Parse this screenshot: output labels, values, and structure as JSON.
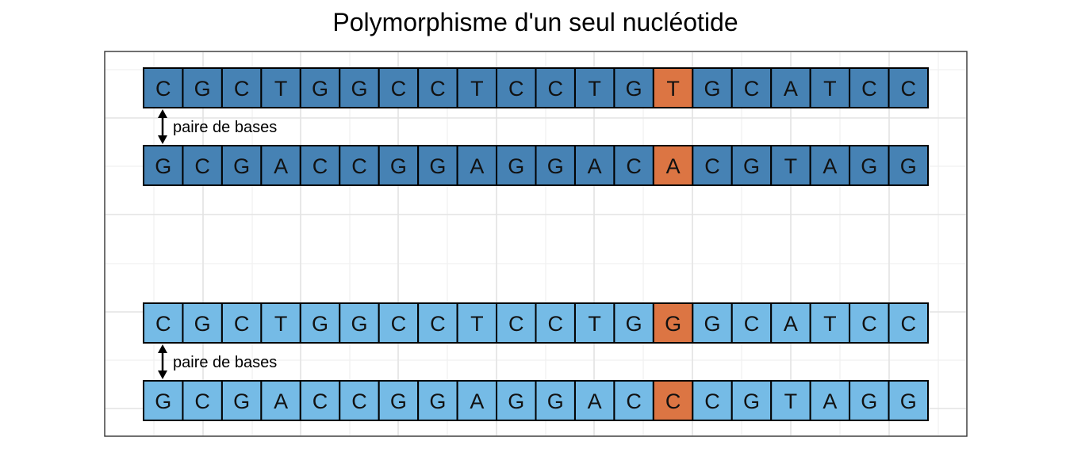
{
  "title": "Polymorphisme d'un seul nucléotide",
  "colors": {
    "strand_dark": "#4682b4",
    "strand_light": "#75bbe6",
    "highlight": "#dc7543",
    "background": "#ffffff",
    "panel_border": "#333333",
    "grid": "#e3e3e3"
  },
  "pairs": [
    {
      "fill": "dark",
      "top": [
        "C",
        "G",
        "C",
        "T",
        "G",
        "G",
        "C",
        "C",
        "T",
        "C",
        "C",
        "T",
        "G",
        "T",
        "G",
        "C",
        "A",
        "T",
        "C",
        "C"
      ],
      "bottom": [
        "G",
        "C",
        "G",
        "A",
        "C",
        "C",
        "G",
        "G",
        "A",
        "G",
        "G",
        "A",
        "C",
        "A",
        "C",
        "G",
        "T",
        "A",
        "G",
        "G"
      ],
      "snp_index": 13,
      "bp_label": "paire de bases"
    },
    {
      "fill": "light",
      "top": [
        "C",
        "G",
        "C",
        "T",
        "G",
        "G",
        "C",
        "C",
        "T",
        "C",
        "C",
        "T",
        "G",
        "G",
        "G",
        "C",
        "A",
        "T",
        "C",
        "C"
      ],
      "bottom": [
        "G",
        "C",
        "G",
        "A",
        "C",
        "C",
        "G",
        "G",
        "A",
        "G",
        "G",
        "A",
        "C",
        "C",
        "C",
        "G",
        "T",
        "A",
        "G",
        "G"
      ],
      "snp_index": 13,
      "bp_label": "paire de bases"
    }
  ]
}
